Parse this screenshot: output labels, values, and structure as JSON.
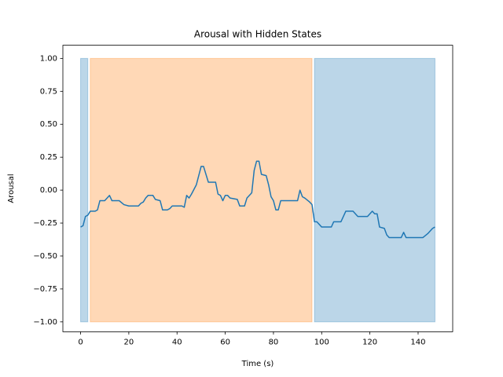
{
  "chart_data": {
    "type": "line",
    "title": "Arousal with Hidden States",
    "x_label": "Time (s)",
    "y_label": "Arousal",
    "xlim": [
      -7.35,
      154.35
    ],
    "ylim": [
      -1.075,
      1.1
    ],
    "xticks": [
      0,
      20,
      40,
      60,
      80,
      100,
      120,
      140
    ],
    "yticks": [
      {
        "value": -1,
        "label": "−1.00"
      },
      {
        "value": -0.75,
        "label": "−0.75"
      },
      {
        "value": -0.5,
        "label": "−0.50"
      },
      {
        "value": -0.25,
        "label": "−0.25"
      },
      {
        "value": 0,
        "label": "0.00"
      },
      {
        "value": 0.25,
        "label": "0.25"
      },
      {
        "value": 0.5,
        "label": "0.50"
      },
      {
        "value": 0.75,
        "label": "0.75"
      },
      {
        "value": 1,
        "label": "1.00"
      }
    ],
    "spans": [
      {
        "start": 0,
        "end": 3,
        "ymin": -1,
        "ymax": 1,
        "color": "#1f77b4",
        "alpha": 0.3
      },
      {
        "start": 4,
        "end": 96,
        "ymin": -1,
        "ymax": 1,
        "color": "#ff7f0e",
        "alpha": 0.3
      },
      {
        "start": 97,
        "end": 147,
        "ymin": -1,
        "ymax": 1,
        "color": "#1f77b4",
        "alpha": 0.3
      }
    ],
    "x": [
      0,
      1,
      2,
      3,
      4,
      6,
      7,
      8,
      10,
      11,
      12,
      13,
      16,
      18,
      20,
      24,
      25,
      26,
      27,
      28,
      30,
      31,
      33,
      34,
      36,
      37,
      38,
      42,
      43,
      44,
      45,
      46,
      48,
      50,
      51,
      53,
      56,
      57,
      58,
      59,
      60,
      61,
      62,
      65,
      66,
      68,
      69,
      71,
      72,
      73,
      74,
      75,
      77,
      78,
      79,
      80,
      81,
      82,
      83,
      90,
      91,
      92,
      93,
      95,
      96,
      97,
      98,
      100,
      104,
      105,
      108,
      110,
      113,
      115,
      119,
      121,
      122,
      123,
      124,
      126,
      127,
      128,
      133,
      134,
      135,
      142,
      144,
      146,
      147
    ],
    "series": [
      {
        "color": "#1f77b4",
        "values": [
          -0.28,
          -0.27,
          -0.2,
          -0.19,
          -0.16,
          -0.16,
          -0.15,
          -0.08,
          -0.08,
          -0.06,
          -0.04,
          -0.08,
          -0.08,
          -0.11,
          -0.12,
          -0.12,
          -0.1,
          -0.09,
          -0.06,
          -0.04,
          -0.04,
          -0.07,
          -0.08,
          -0.15,
          -0.15,
          -0.14,
          -0.12,
          -0.12,
          -0.13,
          -0.04,
          -0.06,
          -0.03,
          0.04,
          0.18,
          0.18,
          0.06,
          0.06,
          -0.03,
          -0.04,
          -0.08,
          -0.04,
          -0.04,
          -0.06,
          -0.07,
          -0.12,
          -0.12,
          -0.06,
          -0.02,
          0.15,
          0.22,
          0.22,
          0.12,
          0.11,
          0.04,
          -0.05,
          -0.08,
          -0.15,
          -0.15,
          -0.08,
          -0.08,
          0.0,
          -0.05,
          -0.06,
          -0.09,
          -0.11,
          -0.24,
          -0.24,
          -0.28,
          -0.28,
          -0.24,
          -0.24,
          -0.16,
          -0.16,
          -0.2,
          -0.2,
          -0.16,
          -0.18,
          -0.18,
          -0.28,
          -0.29,
          -0.34,
          -0.36,
          -0.36,
          -0.32,
          -0.36,
          -0.36,
          -0.33,
          -0.29,
          -0.28
        ]
      }
    ]
  }
}
